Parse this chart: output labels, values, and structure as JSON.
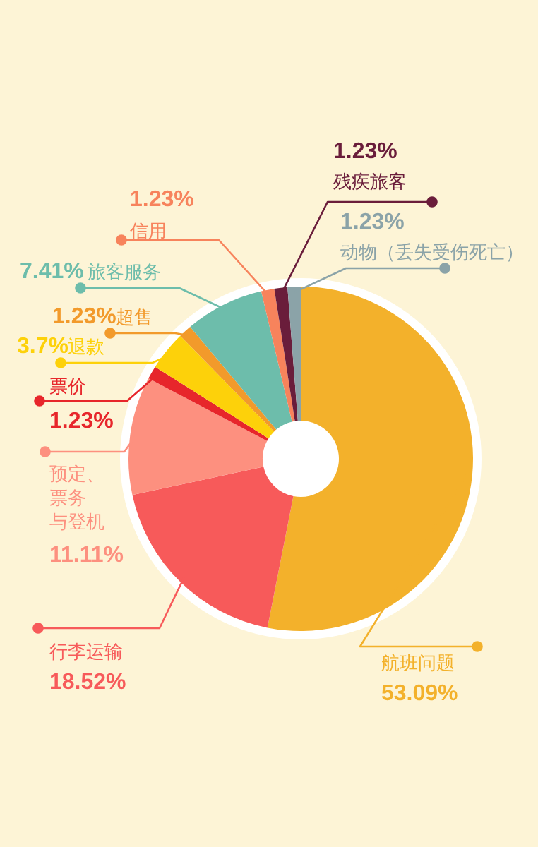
{
  "chart_data": {
    "type": "donut",
    "categories": [
      "航班问题",
      "行李运输",
      "预定、票务与登机",
      "票价",
      "退款",
      "超售",
      "旅客服务",
      "信用",
      "残疾旅客",
      "动物（丢失受伤死亡）"
    ],
    "values": [
      53.09,
      18.52,
      11.11,
      1.23,
      3.7,
      1.23,
      7.41,
      1.23,
      1.23,
      1.23
    ],
    "colors": [
      "#f3b12b",
      "#f75a5a",
      "#fd907f",
      "#e7262b",
      "#fdd10a",
      "#f29a2b",
      "#6dbdab",
      "#f7835c",
      "#6a1d3b",
      "#8ba3a8"
    ],
    "value_labels": [
      "53.09%",
      "18.52%",
      "11.11%",
      "1.23%",
      "3.7%",
      "1.23%",
      "7.41%",
      "1.23%",
      "1.23%",
      "1.23%"
    ]
  }
}
